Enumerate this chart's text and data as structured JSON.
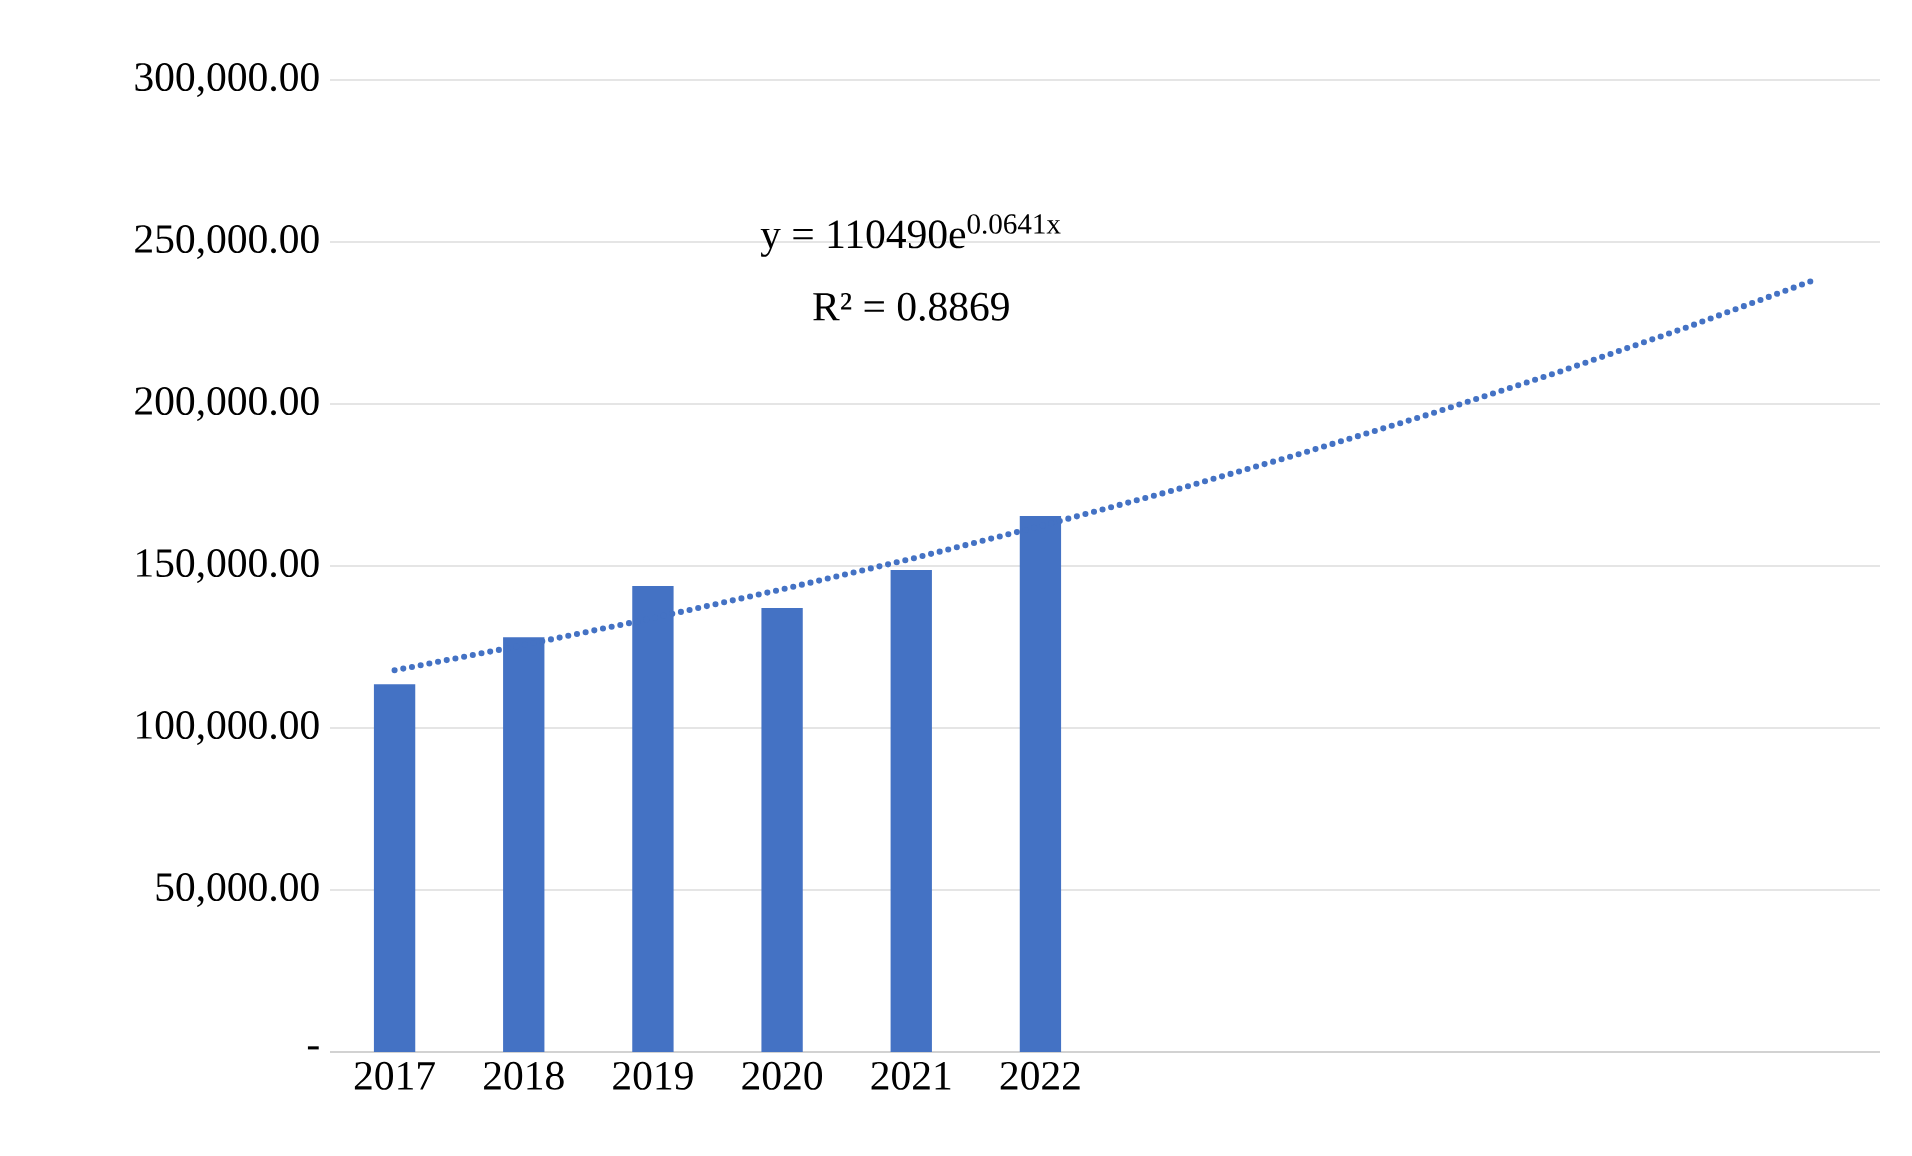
{
  "chart_data": {
    "type": "bar",
    "categories": [
      "2017",
      "2018",
      "2019",
      "2020",
      "2021",
      "2022",
      null,
      null,
      null,
      null,
      null,
      null
    ],
    "series": [
      {
        "color": "#4472c4",
        "values": [
          113500,
          128000,
          143800,
          137000,
          148800,
          165400,
          null,
          null,
          null,
          null,
          null,
          null
        ]
      },
      {
        "type": "line",
        "color": "#4472c4",
        "line_style": "dotted",
        "values": [
          117800,
          125600,
          133900,
          142800,
          152200,
          162300,
          173000,
          184500,
          196700,
          209700,
          223600,
          238400
        ]
      }
    ],
    "ylim": [
      0,
      300000
    ],
    "yticks": [
      {
        "value": 0,
        "label": "-"
      },
      {
        "value": 50000,
        "label": "50,000.00"
      },
      {
        "value": 100000,
        "label": "100,000.00"
      },
      {
        "value": 150000,
        "label": "150,000.00"
      },
      {
        "value": 200000,
        "label": "200,000.00"
      },
      {
        "value": 250000,
        "label": "250,000.00"
      },
      {
        "value": 300000,
        "label": "300,000.00"
      }
    ],
    "grid": "y",
    "annotations": [
      "y = 110490e$^{0.0641x}$",
      "R² = 0.8869"
    ]
  }
}
